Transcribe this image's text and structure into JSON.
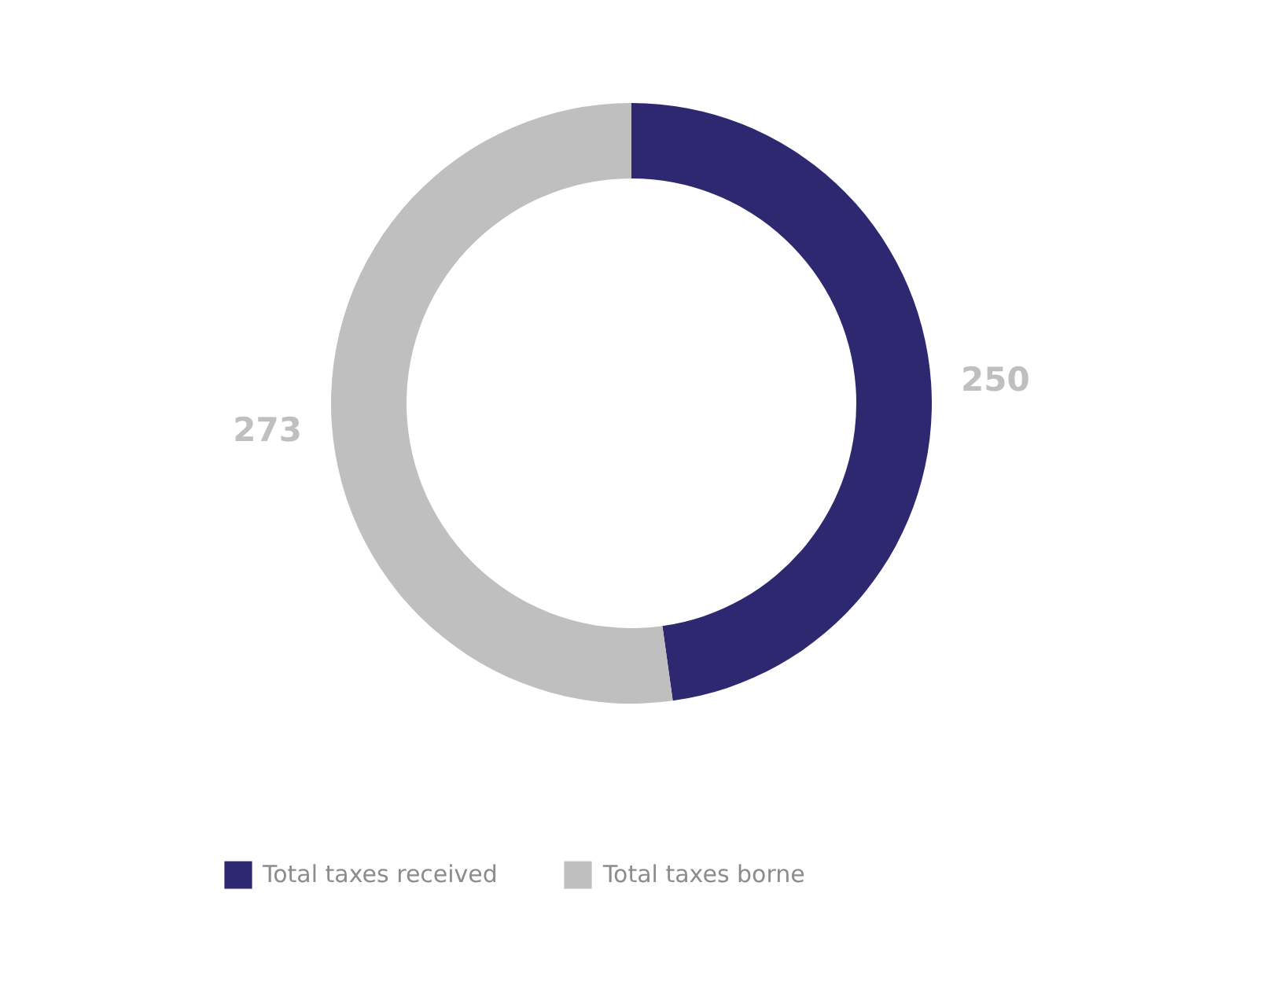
{
  "chart_data": {
    "type": "donut",
    "categories": [
      "Total taxes received",
      "Total taxes borne"
    ],
    "values": [
      250,
      273
    ],
    "colors": [
      "#2e2870",
      "#bfbfbf"
    ],
    "data_labels": true,
    "legend": "bottom"
  }
}
